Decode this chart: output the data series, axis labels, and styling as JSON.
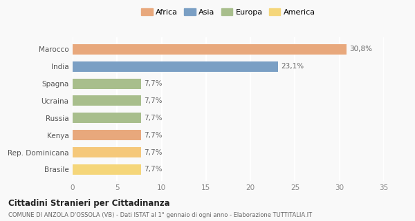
{
  "categories": [
    "Brasile",
    "Rep. Dominicana",
    "Kenya",
    "Russia",
    "Ucraina",
    "Spagna",
    "India",
    "Marocco"
  ],
  "values": [
    7.7,
    7.7,
    7.7,
    7.7,
    7.7,
    7.7,
    23.1,
    30.8
  ],
  "bar_colors": [
    "#f5d67a",
    "#f5c87a",
    "#e8a87c",
    "#a8be8c",
    "#a8be8c",
    "#a8be8c",
    "#7a9fc4",
    "#e8a87c"
  ],
  "labels": [
    "7,7%",
    "7,7%",
    "7,7%",
    "7,7%",
    "7,7%",
    "7,7%",
    "23,1%",
    "30,8%"
  ],
  "legend": [
    {
      "label": "Africa",
      "color": "#e8a87c"
    },
    {
      "label": "Asia",
      "color": "#7a9fc4"
    },
    {
      "label": "Europa",
      "color": "#a8be8c"
    },
    {
      "label": "America",
      "color": "#f5d67a"
    }
  ],
  "xlim": [
    0,
    35
  ],
  "xticks": [
    0,
    5,
    10,
    15,
    20,
    25,
    30,
    35
  ],
  "title": "Cittadini Stranieri per Cittadinanza",
  "subtitle": "COMUNE DI ANZOLA D'OSSOLA (VB) - Dati ISTAT al 1° gennaio di ogni anno - Elaborazione TUTTITALIA.IT",
  "background_color": "#f9f9f9",
  "grid_color": "#ffffff",
  "bar_edge_color": "none",
  "bar_height": 0.6
}
